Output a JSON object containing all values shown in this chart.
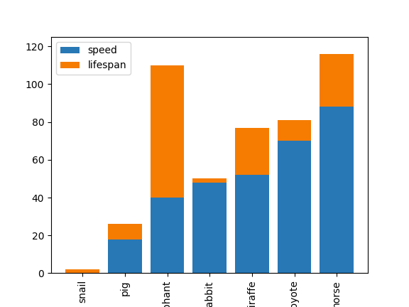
{
  "categories": [
    "snail",
    "pig",
    "elephant",
    "rabbit",
    "giraffe",
    "coyote",
    "horse"
  ],
  "speed": [
    0,
    18,
    40,
    48,
    52,
    70,
    88
  ],
  "lifespan": [
    2,
    8,
    70,
    2,
    25,
    11,
    28
  ],
  "speed_color": "#2878b5",
  "lifespan_color": "#f57c00",
  "ylim": [
    0,
    125
  ],
  "yticks": [
    0,
    20,
    40,
    60,
    80,
    100,
    120
  ],
  "legend_labels": [
    "speed",
    "lifespan"
  ],
  "figsize": [
    5.76,
    4.32
  ],
  "dpi": 100
}
